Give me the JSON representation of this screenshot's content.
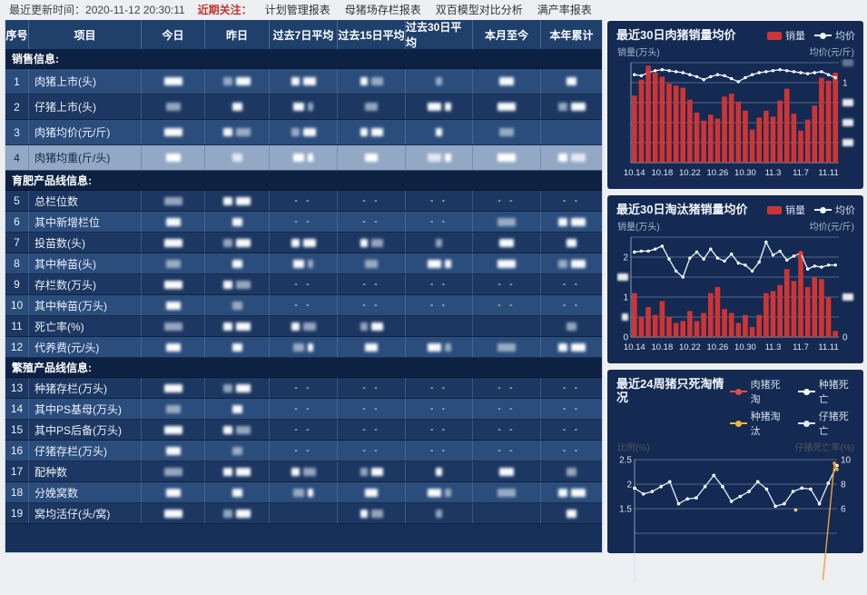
{
  "topbar": {
    "update_label": "最近更新时间：",
    "update_time": "2020-11-12 20:30:11",
    "focus_label": "近期关注：",
    "links": [
      "计划管理报表",
      "母猪场存栏报表",
      "双百模型对比分析",
      "满产率报表"
    ]
  },
  "table": {
    "headers": [
      "序号",
      "项目",
      "今日",
      "昨日",
      "过去7日平均",
      "过去15日平均",
      "过去30日平均",
      "本月至今",
      "本年累计"
    ],
    "empty_marker": "- -",
    "redacted_note": "blur",
    "sections": [
      {
        "title": "销售信息:",
        "rows": [
          {
            "no": "1",
            "item": "肉猪上市(头)",
            "variant": "light",
            "cells": [
              "b",
              "b",
              "b",
              "b",
              "b",
              "b",
              "b"
            ]
          },
          {
            "no": "2",
            "item": "仔猪上市(头)",
            "variant": "dark",
            "cells": [
              "b",
              "b",
              "b",
              "b",
              "b",
              "b",
              "b"
            ]
          },
          {
            "no": "3",
            "item": "肉猪均价(元/斤)",
            "variant": "light",
            "cells": [
              "b",
              "b",
              "b",
              "b",
              "b",
              "b",
              ""
            ]
          },
          {
            "no": "4",
            "item": "肉猪均重(斤/头)",
            "variant": "selected",
            "cells": [
              "b",
              "b",
              "b",
              "b",
              "b",
              "b",
              "b"
            ]
          }
        ]
      },
      {
        "title": "育肥产品线信息:",
        "rows": [
          {
            "no": "5",
            "item": "总栏位数",
            "variant": "dark",
            "cells": [
              "b",
              "b",
              "--",
              "--",
              "--",
              "--",
              "--"
            ]
          },
          {
            "no": "6",
            "item": "其中新增栏位",
            "variant": "light",
            "cells": [
              "b",
              "b",
              "--",
              "--",
              "--",
              "b",
              "b"
            ]
          },
          {
            "no": "7",
            "item": "投苗数(头)",
            "variant": "dark",
            "cells": [
              "b",
              "b",
              "b",
              "b",
              "b",
              "b",
              "b"
            ]
          },
          {
            "no": "8",
            "item": "其中种苗(头)",
            "variant": "light",
            "cells": [
              "b",
              "b",
              "b",
              "b",
              "b",
              "b",
              "b"
            ]
          },
          {
            "no": "9",
            "item": "存栏数(万头)",
            "variant": "dark",
            "cells": [
              "b",
              "b",
              "--",
              "--",
              "--",
              "--",
              "--"
            ]
          },
          {
            "no": "10",
            "item": "其中种苗(万头)",
            "variant": "light",
            "cells": [
              "b",
              "b",
              "--",
              "--",
              "--",
              "--",
              "--"
            ]
          },
          {
            "no": "11",
            "item": "死亡率(%)",
            "variant": "dark",
            "cells": [
              "b",
              "b",
              "b",
              "b",
              "",
              "",
              "b"
            ]
          },
          {
            "no": "12",
            "item": "代养费(元/头)",
            "variant": "light",
            "cells": [
              "b",
              "b",
              "b",
              "b",
              "b",
              "b",
              "b"
            ]
          }
        ]
      },
      {
        "title": "繁殖产品线信息:",
        "rows": [
          {
            "no": "13",
            "item": "种猪存栏(万头)",
            "variant": "dark",
            "cells": [
              "b",
              "b",
              "--",
              "--",
              "--",
              "--",
              "--"
            ]
          },
          {
            "no": "14",
            "item": "其中PS基母(万头)",
            "variant": "light",
            "cells": [
              "b",
              "b",
              "--",
              "--",
              "--",
              "--",
              "--"
            ]
          },
          {
            "no": "15",
            "item": "其中PS后备(万头)",
            "variant": "dark",
            "cells": [
              "b",
              "b",
              "--",
              "--",
              "--",
              "--",
              "--"
            ]
          },
          {
            "no": "16",
            "item": "仔猪存栏(万头)",
            "variant": "light",
            "cells": [
              "b",
              "b",
              "--",
              "--",
              "--",
              "--",
              "--"
            ]
          },
          {
            "no": "17",
            "item": "配种数",
            "variant": "dark",
            "cells": [
              "b",
              "b",
              "b",
              "b",
              "b",
              "b",
              "b"
            ]
          },
          {
            "no": "18",
            "item": "分娩窝数",
            "variant": "light",
            "cells": [
              "b",
              "b",
              "b",
              "b",
              "b",
              "b",
              "b"
            ]
          },
          {
            "no": "19",
            "item": "窝均活仔(头/窝)",
            "variant": "dark",
            "cells": [
              "b",
              "b",
              "",
              "b",
              "b",
              "",
              "b"
            ]
          }
        ]
      }
    ]
  },
  "chart_data": [
    {
      "type": "bar+line",
      "title": "最近30日肉猪销量均价",
      "legend": [
        {
          "label": "销量",
          "marker": "bar",
          "color": "#cd3535"
        },
        {
          "label": "均价",
          "marker": "line",
          "color": "#e9f2fa"
        }
      ],
      "y_axis_left_title": "销量(万头)",
      "y_axis_right_title": "均价(元/斤)",
      "x_tick_labels": [
        "10.14",
        "10.18",
        "10.22",
        "10.26",
        "10.30",
        "11.3",
        "11.7",
        "11.11"
      ],
      "x_tick_indices": [
        0,
        4,
        8,
        12,
        16,
        20,
        24,
        28
      ],
      "bars_pct_of_plot": [
        67,
        83,
        97,
        90,
        86,
        79,
        77,
        75,
        63,
        50,
        42,
        48,
        44,
        66,
        69,
        61,
        52,
        33,
        45,
        52,
        46,
        62,
        74,
        49,
        32,
        43,
        57,
        85,
        82,
        90
      ],
      "line_pct_of_plot": [
        88,
        87,
        90,
        92,
        93,
        92,
        91,
        90,
        88,
        86,
        83,
        86,
        88,
        87,
        84,
        81,
        85,
        88,
        90,
        91,
        92,
        93,
        92,
        91,
        90,
        89,
        90,
        91,
        88,
        85
      ],
      "line_highlight_index": 2,
      "left_ticks": [
        {
          "kind": "none"
        },
        {
          "kind": "none"
        },
        {
          "kind": "none"
        },
        {
          "kind": "none"
        },
        {
          "kind": "none"
        },
        {
          "kind": "none"
        }
      ],
      "right_ticks": [
        {
          "kind": "blur_faint"
        },
        {
          "kind": "text",
          "label": "1"
        },
        {
          "kind": "blur"
        },
        {
          "kind": "blur"
        },
        {
          "kind": "blur"
        },
        {
          "kind": "none"
        }
      ]
    },
    {
      "type": "bar+line",
      "title": "最近30日淘汰猪销量均价",
      "legend": [
        {
          "label": "销量",
          "marker": "bar",
          "color": "#cd3535"
        },
        {
          "label": "均价",
          "marker": "line",
          "color": "#e9f2fa"
        }
      ],
      "y_axis_left_title": "销量(万头)",
      "y_axis_right_title": "均价(元/斤)",
      "x_tick_labels": [
        "10.14",
        "10.18",
        "10.22",
        "10.26",
        "10.30",
        "11.3",
        "11.7",
        "11.11"
      ],
      "x_tick_indices": [
        0,
        4,
        8,
        12,
        16,
        20,
        24,
        28
      ],
      "y_left_max": 2.5,
      "bars_wantou": [
        1.1,
        0.5,
        0.75,
        0.55,
        0.9,
        0.5,
        0.35,
        0.4,
        0.65,
        0.4,
        0.6,
        1.1,
        1.25,
        0.7,
        0.6,
        0.35,
        0.55,
        0.25,
        0.55,
        1.1,
        1.15,
        1.3,
        1.7,
        1.4,
        2.1,
        1.25,
        1.5,
        1.45,
        1.0,
        0.15
      ],
      "line_pct_of_plot": [
        85,
        86,
        86,
        88,
        91,
        78,
        66,
        60,
        79,
        85,
        78,
        88,
        79,
        76,
        83,
        74,
        72,
        66,
        75,
        95,
        82,
        86,
        77,
        81,
        84,
        68,
        71,
        70,
        72,
        72
      ],
      "line_highlight_index": 24,
      "left_ticks": [
        {
          "kind": "none"
        },
        {
          "kind": "text",
          "label": "2"
        },
        {
          "kind": "blur"
        },
        {
          "kind": "text",
          "label": "1"
        },
        {
          "kind": "blur_small"
        },
        {
          "kind": "text",
          "label": "0"
        }
      ],
      "right_ticks": [
        {
          "kind": "none"
        },
        {
          "kind": "none"
        },
        {
          "kind": "none"
        },
        {
          "kind": "blur"
        },
        {
          "kind": "none"
        },
        {
          "kind": "text",
          "label": "0"
        }
      ]
    },
    {
      "type": "multi-line",
      "title": "最近24周猪只死淘情况",
      "legend": [
        {
          "label": "肉猪死淘",
          "color": "#e04f4f"
        },
        {
          "label": "种猪死亡",
          "color": "#ffffff"
        },
        {
          "label": "种猪淘汰",
          "color": "#f0b93d"
        },
        {
          "label": "仔猪死亡",
          "color": "#dcebfa"
        }
      ],
      "y_axis_left_title": "比例(%)",
      "y_axis_right_title": "仔猪死亡率(%)",
      "left_tick_labels": [
        "2.5",
        "2",
        "1.5"
      ],
      "right_tick_labels": [
        "10",
        "8",
        "6"
      ],
      "ylim_left_visible": [
        1.5,
        2.5
      ],
      "ylim_right_visible": [
        6,
        10
      ],
      "piglet_line_values": [
        1.92,
        1.8,
        1.85,
        1.95,
        2.05,
        1.6,
        1.7,
        1.72,
        1.95,
        2.18,
        1.95,
        1.65,
        1.75,
        1.85,
        2.05,
        1.9,
        1.55,
        1.6,
        1.85,
        1.92,
        1.9,
        1.6,
        2.02,
        2.38
      ],
      "sow_cull_spike_right_scale": [
        {
          "i": 21.4,
          "v": 0.2
        },
        {
          "i": 22.7,
          "v": 9.7
        },
        {
          "i": 23,
          "v": 9.2
        }
      ],
      "sow_cull_lone_dot": {
        "i": 18.3,
        "v": 5.9
      },
      "note_clipped": "bottom of chart cut off by viewport"
    }
  ],
  "colors": {
    "bar_red": "#cd3535",
    "avg_line": "#d9e9f7",
    "highlight_dot": "#e23b3b",
    "orange_line": "#f0a23b",
    "yellow_dot": "#f2cf6a",
    "card_bg": "#142a52",
    "row_dark": "#1c3761",
    "row_light": "#2b4d7c",
    "row_selected": "#92a8c5",
    "section_bg": "#0d2243",
    "header_bg": "#20406c",
    "topbar_red": "#c0362c",
    "grid_line": "#5d7190"
  }
}
